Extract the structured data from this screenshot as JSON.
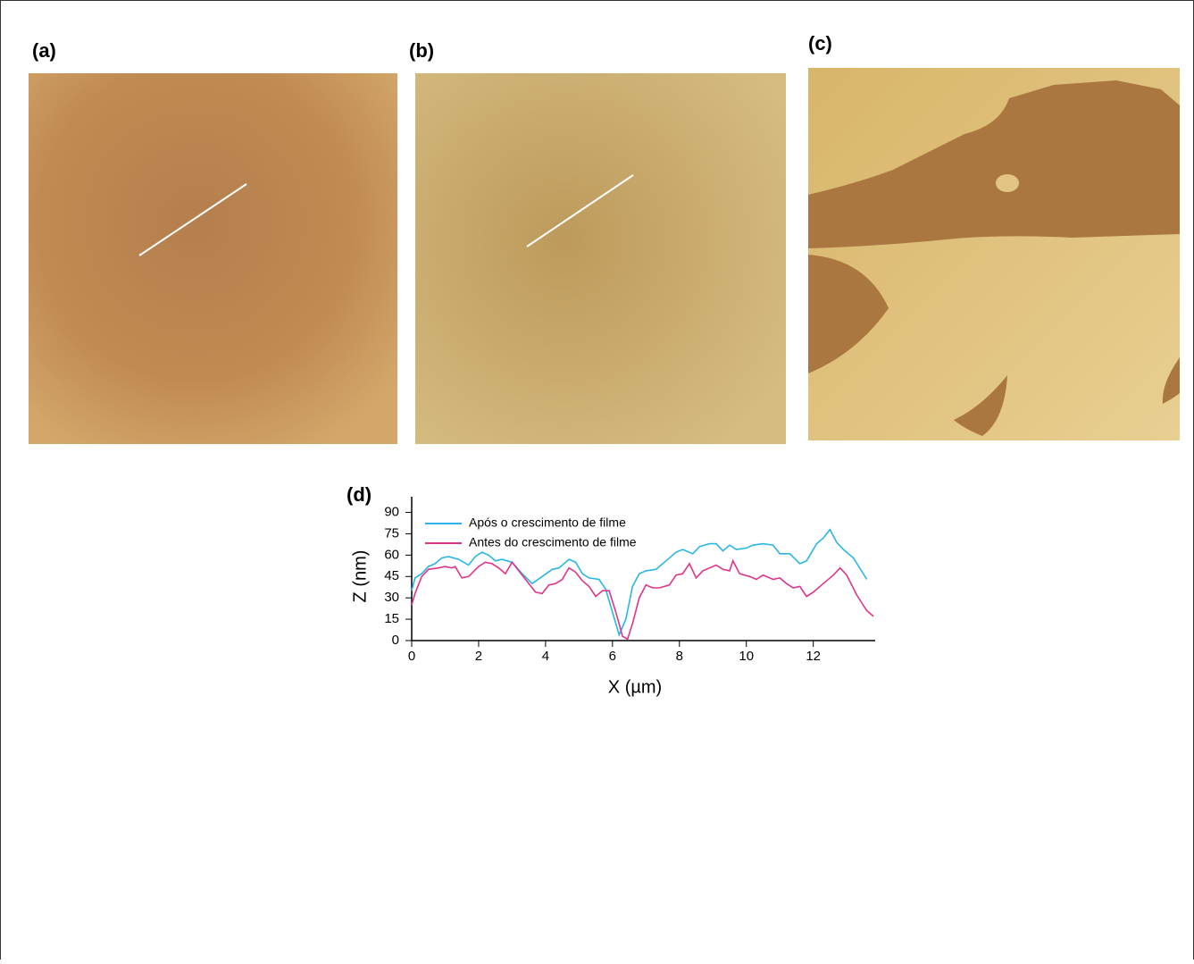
{
  "panels": [
    "(a)",
    "(b)",
    "(c)"
  ],
  "chart_data": {
    "type": "line",
    "panel_label": "(d)",
    "x_label": "X (µm)",
    "y_label": "Z (nm)",
    "xlim": [
      0,
      13.85
    ],
    "xticks": [
      0,
      2,
      4,
      6,
      8,
      10,
      12
    ],
    "ylim": [
      0,
      101
    ],
    "yticks": [
      0,
      15,
      30,
      45,
      60,
      75,
      90
    ],
    "series": [
      {
        "name": "Após o crescimento de filme",
        "color": "#29b6e6",
        "x": [
          0,
          0.1,
          0.3,
          0.5,
          0.7,
          0.9,
          1.1,
          1.4,
          1.7,
          1.9,
          2.1,
          2.3,
          2.5,
          2.7,
          3.0,
          3.3,
          3.6,
          3.9,
          4.2,
          4.4,
          4.7,
          4.9,
          5.1,
          5.3,
          5.6,
          5.8,
          6.0,
          6.2,
          6.4,
          6.6,
          6.8,
          7.0,
          7.3,
          7.6,
          7.9,
          8.1,
          8.4,
          8.6,
          8.9,
          9.1,
          9.3,
          9.5,
          9.7,
          10.0,
          10.2,
          10.5,
          10.8,
          11.0,
          11.3,
          11.6,
          11.8,
          12.1,
          12.3,
          12.5,
          12.7,
          12.9,
          13.2,
          13.6
        ],
        "values": [
          35,
          44,
          47,
          52,
          54,
          58,
          59,
          57,
          53,
          59,
          62,
          60,
          56,
          57,
          55,
          47,
          40,
          45,
          50,
          51,
          57,
          55,
          47,
          44,
          43,
          36,
          20,
          4,
          15,
          38,
          47,
          49,
          50,
          56,
          62,
          64,
          61,
          66,
          68,
          68,
          63,
          67,
          64,
          65,
          67,
          68,
          67,
          61,
          61,
          54,
          56,
          68,
          72,
          78,
          69,
          64,
          58,
          43
        ]
      },
      {
        "name": "Antes do crescimento de filme",
        "color": "#e0338a",
        "x": [
          0,
          0.1,
          0.3,
          0.5,
          0.8,
          1.0,
          1.2,
          1.3,
          1.5,
          1.7,
          2.0,
          2.2,
          2.4,
          2.6,
          2.8,
          3.0,
          3.2,
          3.5,
          3.7,
          3.9,
          4.1,
          4.3,
          4.5,
          4.7,
          4.9,
          5.1,
          5.3,
          5.5,
          5.7,
          5.9,
          6.1,
          6.3,
          6.45,
          6.6,
          6.8,
          7.0,
          7.2,
          7.4,
          7.7,
          7.9,
          8.1,
          8.3,
          8.5,
          8.7,
          8.9,
          9.1,
          9.3,
          9.5,
          9.6,
          9.8,
          10.1,
          10.3,
          10.5,
          10.8,
          11.0,
          11.2,
          11.4,
          11.6,
          11.8,
          12.0,
          12.3,
          12.6,
          12.8,
          13.0,
          13.3,
          13.6,
          13.8
        ],
        "values": [
          25,
          33,
          45,
          50,
          51,
          52,
          51,
          52,
          44,
          45,
          52,
          55,
          54,
          51,
          47,
          55,
          49,
          40,
          34,
          33,
          39,
          40,
          43,
          51,
          48,
          42,
          38,
          31,
          35,
          35,
          20,
          3,
          1,
          12,
          30,
          39,
          37,
          37,
          39,
          46,
          47,
          54,
          44,
          49,
          51,
          53,
          50,
          49,
          56,
          47,
          45,
          43,
          46,
          43,
          44,
          40,
          37,
          38,
          31,
          34,
          40,
          46,
          51,
          46,
          32,
          21,
          17
        ]
      }
    ]
  }
}
